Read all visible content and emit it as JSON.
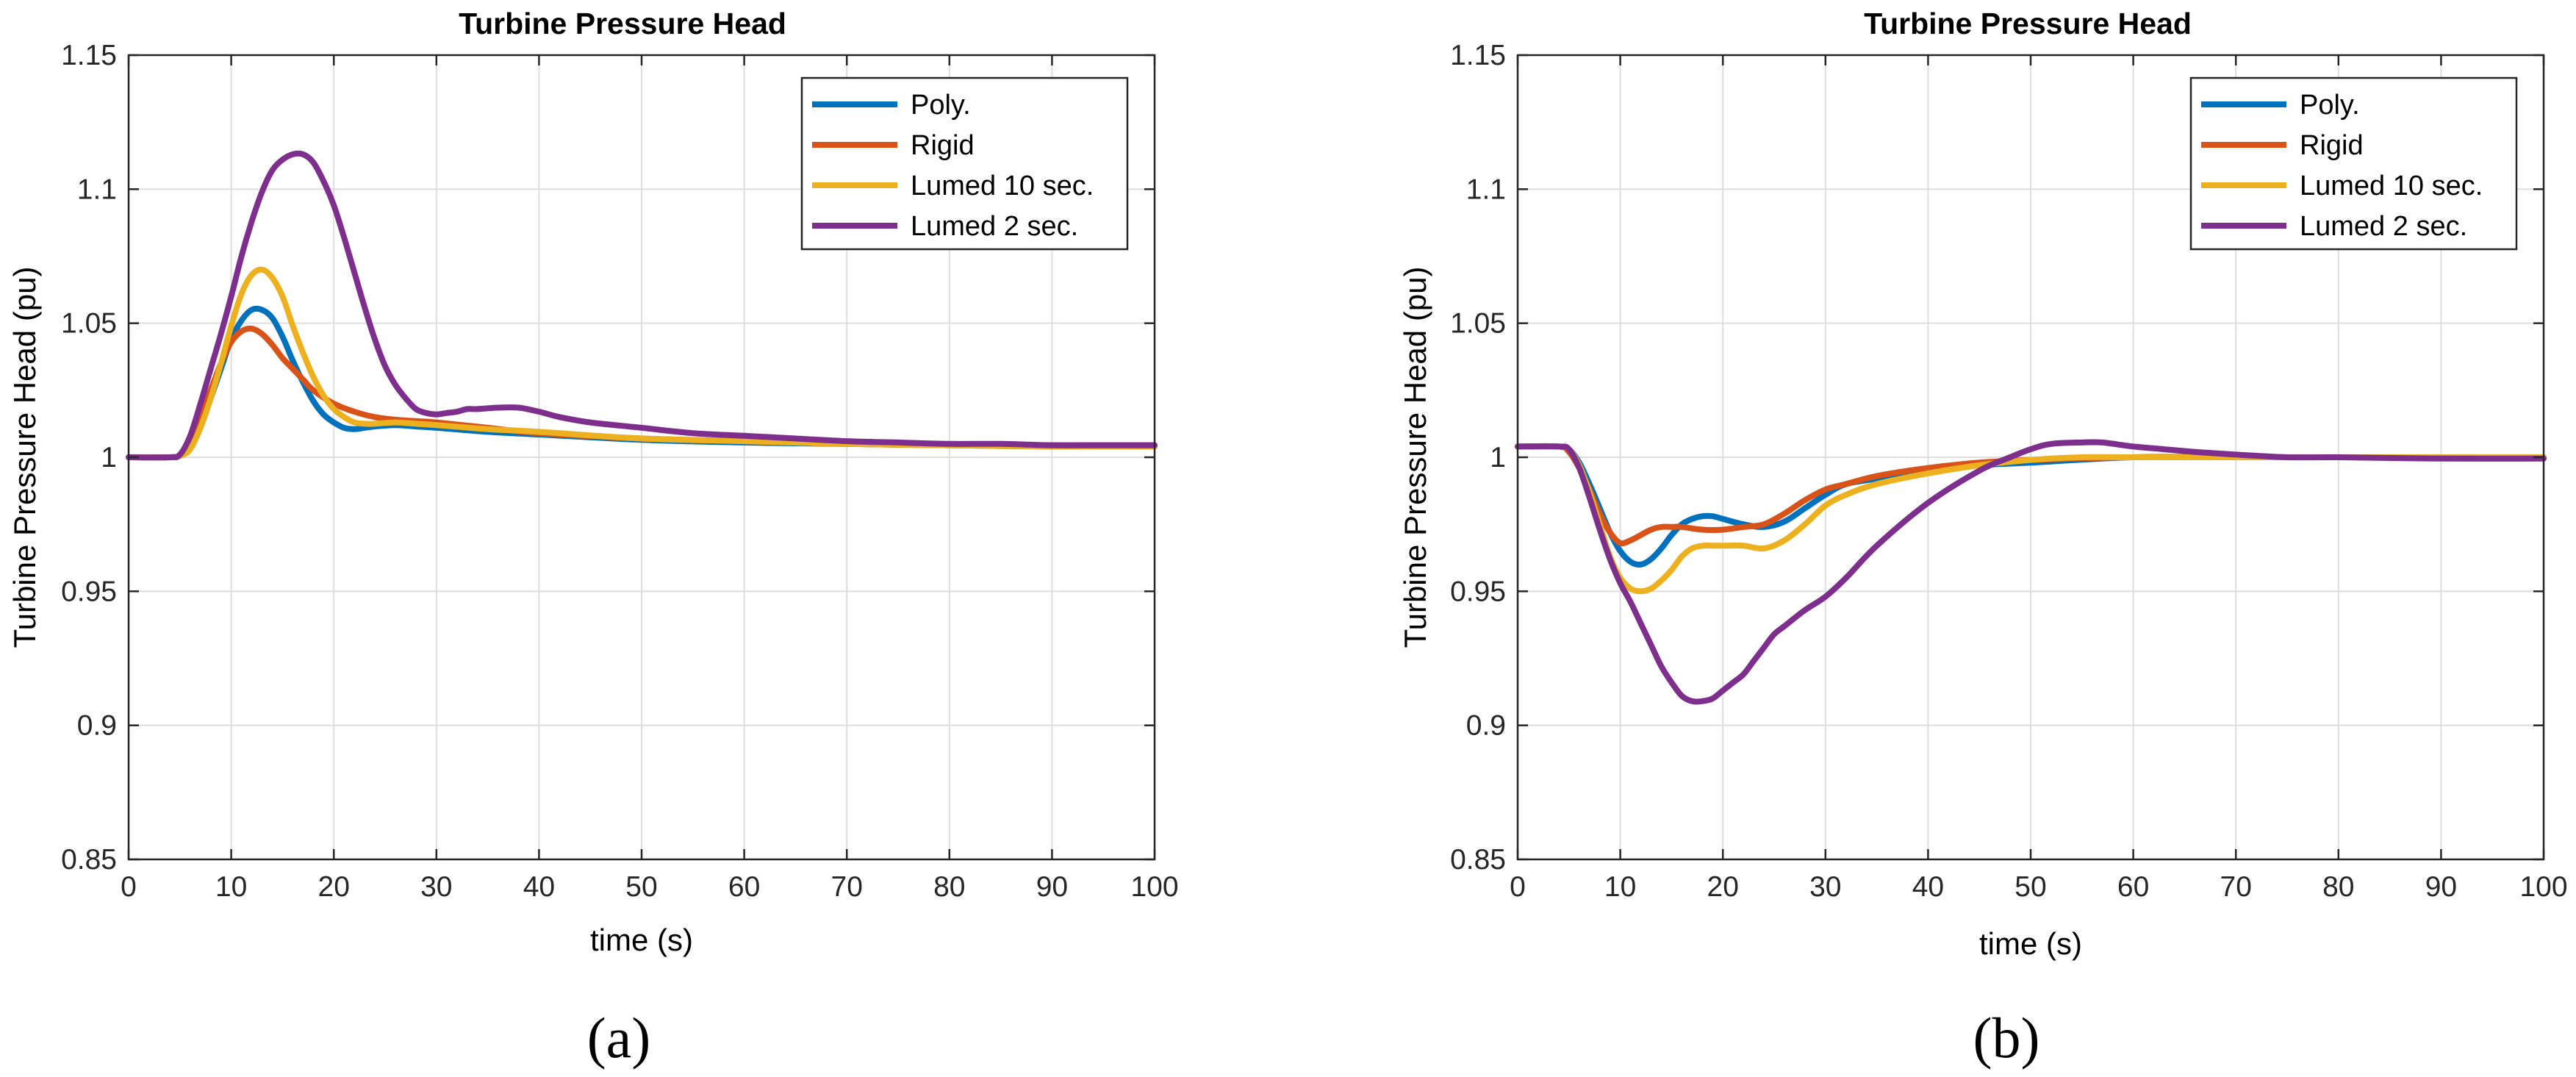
{
  "chart_data": [
    {
      "type": "line",
      "panel_label": "(a)",
      "title": "Turbine Pressure Head",
      "xlabel": "time (s)",
      "ylabel": "Turbine Pressure Head (pu)",
      "xlim": [
        0,
        100
      ],
      "ylim": [
        0.85,
        1.15
      ],
      "xticks": [
        0,
        10,
        20,
        30,
        40,
        50,
        60,
        70,
        80,
        90,
        100
      ],
      "xtick_labels": [
        "0",
        "10",
        "20",
        "30",
        "40",
        "50",
        "60",
        "70",
        "80",
        "90",
        "100"
      ],
      "yticks": [
        0.85,
        0.9,
        0.95,
        1.0,
        1.05,
        1.1,
        1.15
      ],
      "ytick_labels": [
        "0.85",
        "0.9",
        "0.95",
        "1",
        "1.05",
        "1.1",
        "1.15"
      ],
      "grid": true,
      "legend_position": "top-right",
      "series": [
        {
          "name": "Poly.",
          "color": "#0072BD",
          "x": [
            0,
            4,
            5,
            6,
            7,
            8,
            9,
            10,
            11,
            12,
            13,
            14,
            15,
            16,
            17,
            18,
            19,
            20,
            21,
            22,
            23,
            24,
            26,
            28,
            30,
            35,
            40,
            50,
            60,
            70,
            80,
            90,
            100
          ],
          "y": [
            1.0,
            1.0,
            1.0006,
            1.004,
            1.012,
            1.022,
            1.033,
            1.044,
            1.051,
            1.055,
            1.055,
            1.052,
            1.045,
            1.036,
            1.028,
            1.021,
            1.016,
            1.013,
            1.011,
            1.0105,
            1.011,
            1.0115,
            1.012,
            1.0115,
            1.011,
            1.0095,
            1.0085,
            1.0065,
            1.0055,
            1.005,
            1.0045,
            1.004,
            1.004
          ]
        },
        {
          "name": "Rigid",
          "color": "#D95319",
          "x": [
            0,
            4,
            5,
            6,
            7,
            8,
            9,
            10,
            11,
            12,
            13,
            14,
            15,
            16,
            17,
            18,
            20,
            22,
            24,
            26,
            28,
            30,
            35,
            40,
            50,
            60,
            70,
            80,
            90,
            100
          ],
          "y": [
            1.0,
            1.0,
            1.001,
            1.006,
            1.015,
            1.025,
            1.035,
            1.043,
            1.047,
            1.048,
            1.046,
            1.042,
            1.037,
            1.033,
            1.029,
            1.025,
            1.02,
            1.017,
            1.015,
            1.014,
            1.0135,
            1.013,
            1.011,
            1.009,
            1.007,
            1.006,
            1.005,
            1.0045,
            1.0045,
            1.0045
          ]
        },
        {
          "name": "Lumed 10 sec.",
          "color": "#EDB120",
          "x": [
            0,
            4,
            5,
            6,
            7,
            8,
            9,
            10,
            11,
            12,
            13,
            14,
            15,
            16,
            17,
            18,
            19,
            20,
            21,
            22,
            23,
            24,
            26,
            28,
            30,
            35,
            40,
            50,
            60,
            70,
            80,
            90,
            100
          ],
          "y": [
            1.0,
            1.0,
            1.0005,
            1.003,
            1.011,
            1.022,
            1.035,
            1.049,
            1.061,
            1.068,
            1.07,
            1.067,
            1.06,
            1.049,
            1.039,
            1.03,
            1.023,
            1.018,
            1.015,
            1.013,
            1.0125,
            1.0125,
            1.013,
            1.0125,
            1.012,
            1.0105,
            1.0095,
            1.007,
            1.006,
            1.005,
            1.0045,
            1.004,
            1.004
          ]
        },
        {
          "name": "Lumed 2 sec.",
          "color": "#7E2F8E",
          "x": [
            0,
            4,
            5,
            6,
            7,
            8,
            9,
            10,
            11,
            12,
            13,
            14,
            15,
            16,
            17,
            18,
            19,
            20,
            21,
            22,
            23,
            24,
            25,
            26,
            27,
            28,
            29,
            30,
            31,
            32,
            33,
            34,
            36,
            38,
            40,
            42,
            45,
            50,
            55,
            60,
            65,
            70,
            75,
            80,
            85,
            90,
            95,
            100
          ],
          "y": [
            1.0,
            1.0,
            1.001,
            1.008,
            1.02,
            1.033,
            1.046,
            1.06,
            1.075,
            1.088,
            1.099,
            1.107,
            1.111,
            1.113,
            1.113,
            1.11,
            1.103,
            1.094,
            1.082,
            1.069,
            1.056,
            1.044,
            1.034,
            1.027,
            1.022,
            1.018,
            1.0165,
            1.016,
            1.0165,
            1.017,
            1.018,
            1.018,
            1.0185,
            1.0185,
            1.017,
            1.015,
            1.013,
            1.011,
            1.009,
            1.008,
            1.007,
            1.006,
            1.0055,
            1.005,
            1.005,
            1.0045,
            1.0045,
            1.0045
          ]
        }
      ]
    },
    {
      "type": "line",
      "panel_label": "(b)",
      "title": "Turbine Pressure Head",
      "xlabel": "time (s)",
      "ylabel": "Turbine Pressure Head (pu)",
      "xlim": [
        0,
        100
      ],
      "ylim": [
        0.85,
        1.15
      ],
      "xticks": [
        0,
        10,
        20,
        30,
        40,
        50,
        60,
        70,
        80,
        90,
        100
      ],
      "xtick_labels": [
        "0",
        "10",
        "20",
        "30",
        "40",
        "50",
        "60",
        "70",
        "80",
        "90",
        "100"
      ],
      "yticks": [
        0.85,
        0.9,
        0.95,
        1.0,
        1.05,
        1.1,
        1.15
      ],
      "ytick_labels": [
        "0.85",
        "0.9",
        "0.95",
        "1",
        "1.05",
        "1.1",
        "1.15"
      ],
      "grid": true,
      "legend_position": "top-right",
      "series": [
        {
          "name": "Poly.",
          "color": "#0072BD",
          "x": [
            0,
            4,
            5,
            6,
            7,
            8,
            9,
            10,
            11,
            12,
            13,
            14,
            15,
            16,
            17,
            18,
            19,
            20,
            22,
            24,
            26,
            28,
            30,
            32,
            35,
            40,
            45,
            50,
            60,
            70,
            80,
            90,
            100
          ],
          "y": [
            1.004,
            1.004,
            1.003,
            0.998,
            0.99,
            0.981,
            0.972,
            0.965,
            0.961,
            0.96,
            0.962,
            0.966,
            0.971,
            0.975,
            0.977,
            0.978,
            0.978,
            0.977,
            0.975,
            0.974,
            0.976,
            0.981,
            0.986,
            0.99,
            0.992,
            0.995,
            0.997,
            0.998,
            1.0,
            1.0,
            1.0,
            1.0,
            1.0
          ]
        },
        {
          "name": "Rigid",
          "color": "#D95319",
          "x": [
            0,
            4,
            5,
            6,
            7,
            8,
            9,
            10,
            11,
            12,
            13,
            14,
            15,
            16,
            18,
            20,
            22,
            24,
            26,
            28,
            30,
            32,
            35,
            40,
            45,
            50,
            60,
            70,
            80,
            90,
            100
          ],
          "y": [
            1.004,
            1.004,
            1.002,
            0.996,
            0.988,
            0.979,
            0.972,
            0.968,
            0.969,
            0.971,
            0.973,
            0.974,
            0.974,
            0.974,
            0.973,
            0.973,
            0.974,
            0.975,
            0.979,
            0.984,
            0.988,
            0.99,
            0.993,
            0.996,
            0.998,
            0.999,
            1.0,
            1.0,
            1.0,
            1.0,
            1.0
          ]
        },
        {
          "name": "Lumed 10 sec.",
          "color": "#EDB120",
          "x": [
            0,
            4,
            5,
            6,
            7,
            8,
            9,
            10,
            11,
            12,
            13,
            14,
            15,
            16,
            17,
            18,
            19,
            20,
            22,
            24,
            26,
            28,
            30,
            32,
            35,
            40,
            45,
            50,
            55,
            60,
            70,
            80,
            90,
            100
          ],
          "y": [
            1.004,
            1.004,
            1.003,
            0.997,
            0.987,
            0.975,
            0.963,
            0.955,
            0.951,
            0.95,
            0.951,
            0.954,
            0.958,
            0.963,
            0.966,
            0.967,
            0.967,
            0.967,
            0.967,
            0.966,
            0.969,
            0.975,
            0.982,
            0.986,
            0.99,
            0.994,
            0.997,
            0.999,
            1.0,
            1.0,
            1.0,
            1.0,
            1.0,
            1.0
          ]
        },
        {
          "name": "Lumed 2 sec.",
          "color": "#7E2F8E",
          "x": [
            0,
            4,
            5,
            6,
            7,
            8,
            9,
            10,
            11,
            12,
            13,
            14,
            15,
            16,
            17,
            18,
            19,
            20,
            21,
            22,
            23,
            24,
            25,
            26,
            28,
            30,
            32,
            35,
            40,
            45,
            48,
            50,
            52,
            55,
            57,
            60,
            63,
            66,
            70,
            75,
            80,
            90,
            100
          ],
          "y": [
            1.004,
            1.004,
            1.003,
            0.996,
            0.985,
            0.973,
            0.962,
            0.953,
            0.946,
            0.938,
            0.93,
            0.922,
            0.916,
            0.911,
            0.909,
            0.909,
            0.91,
            0.913,
            0.916,
            0.919,
            0.924,
            0.929,
            0.934,
            0.937,
            0.943,
            0.948,
            0.955,
            0.967,
            0.983,
            0.995,
            1.0,
            1.003,
            1.005,
            1.0055,
            1.0055,
            1.004,
            1.003,
            1.002,
            1.001,
            1.0,
            1.0,
            0.9995,
            0.9995
          ]
        }
      ]
    }
  ]
}
